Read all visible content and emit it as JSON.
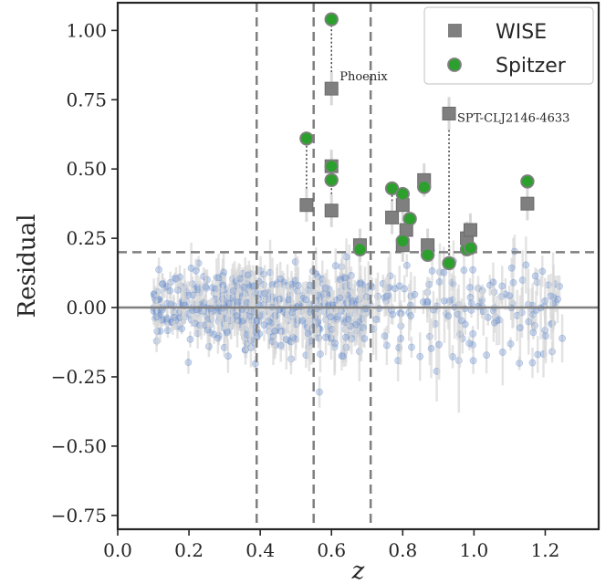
{
  "chart_data": {
    "type": "scatter",
    "title": "",
    "xlabel": "z",
    "ylabel": "Residual",
    "xlim": [
      0.0,
      1.35
    ],
    "ylim": [
      -0.8,
      1.1
    ],
    "xticks": [
      0.0,
      0.2,
      0.4,
      0.6,
      0.8,
      1.0,
      1.2
    ],
    "yticks": [
      1.0,
      0.75,
      0.5,
      0.25,
      0.0,
      -0.25,
      -0.5,
      -0.75
    ],
    "xtick_labels": [
      "0.0",
      "0.2",
      "0.4",
      "0.6",
      "0.8",
      "1.0",
      "1.2"
    ],
    "ytick_labels": [
      "1.00",
      "0.75",
      "0.50",
      "0.25",
      "0.00",
      "−0.25",
      "−0.50",
      "−0.75"
    ],
    "grid": false,
    "legend_position": "top-right",
    "reference_lines": {
      "horizontal_solid": 0.0,
      "horizontal_dashed": 0.2,
      "vertical_dashed": [
        0.39,
        0.55,
        0.71
      ]
    },
    "series": [
      {
        "name": "WISE",
        "marker": "square",
        "color": "#7f7f7f",
        "points": [
          {
            "x": 0.53,
            "y": 0.37
          },
          {
            "x": 0.6,
            "y": 0.79
          },
          {
            "x": 0.6,
            "y": 0.51
          },
          {
            "x": 0.6,
            "y": 0.35
          },
          {
            "x": 0.68,
            "y": 0.225
          },
          {
            "x": 0.77,
            "y": 0.325
          },
          {
            "x": 0.8,
            "y": 0.37
          },
          {
            "x": 0.81,
            "y": 0.28
          },
          {
            "x": 0.8,
            "y": 0.225
          },
          {
            "x": 0.86,
            "y": 0.46
          },
          {
            "x": 0.87,
            "y": 0.225
          },
          {
            "x": 0.93,
            "y": 0.7
          },
          {
            "x": 0.98,
            "y": 0.25
          },
          {
            "x": 0.99,
            "y": 0.28
          },
          {
            "x": 1.15,
            "y": 0.375
          }
        ]
      },
      {
        "name": "Spitzer",
        "marker": "circle",
        "color": "#2ca02c",
        "points": [
          {
            "x": 0.53,
            "y": 0.61
          },
          {
            "x": 0.6,
            "y": 1.04
          },
          {
            "x": 0.6,
            "y": 0.51
          },
          {
            "x": 0.6,
            "y": 0.46
          },
          {
            "x": 0.68,
            "y": 0.21
          },
          {
            "x": 0.77,
            "y": 0.43
          },
          {
            "x": 0.8,
            "y": 0.41
          },
          {
            "x": 0.82,
            "y": 0.32
          },
          {
            "x": 0.8,
            "y": 0.24
          },
          {
            "x": 0.86,
            "y": 0.435
          },
          {
            "x": 0.87,
            "y": 0.19
          },
          {
            "x": 0.93,
            "y": 0.16
          },
          {
            "x": 0.98,
            "y": 0.21
          },
          {
            "x": 0.99,
            "y": 0.215
          },
          {
            "x": 1.15,
            "y": 0.455
          }
        ]
      }
    ],
    "background_sample": {
      "color": "#6a8fcf",
      "n_points": 700,
      "x_range": [
        0.05,
        1.29
      ],
      "y_center": 0.0,
      "y_spread": 0.07,
      "y_extremes": [
        -0.38,
        0.44
      ]
    },
    "annotations": [
      {
        "text": "Phoenix",
        "x": 0.6,
        "y": 0.82
      },
      {
        "text": "SPT-CLJ2146-4633",
        "x": 0.93,
        "y": 0.67
      }
    ]
  },
  "colors": {
    "axis": "#262626",
    "reference_line": "#7f7f7f",
    "errorbar": "#d8d8d8"
  }
}
